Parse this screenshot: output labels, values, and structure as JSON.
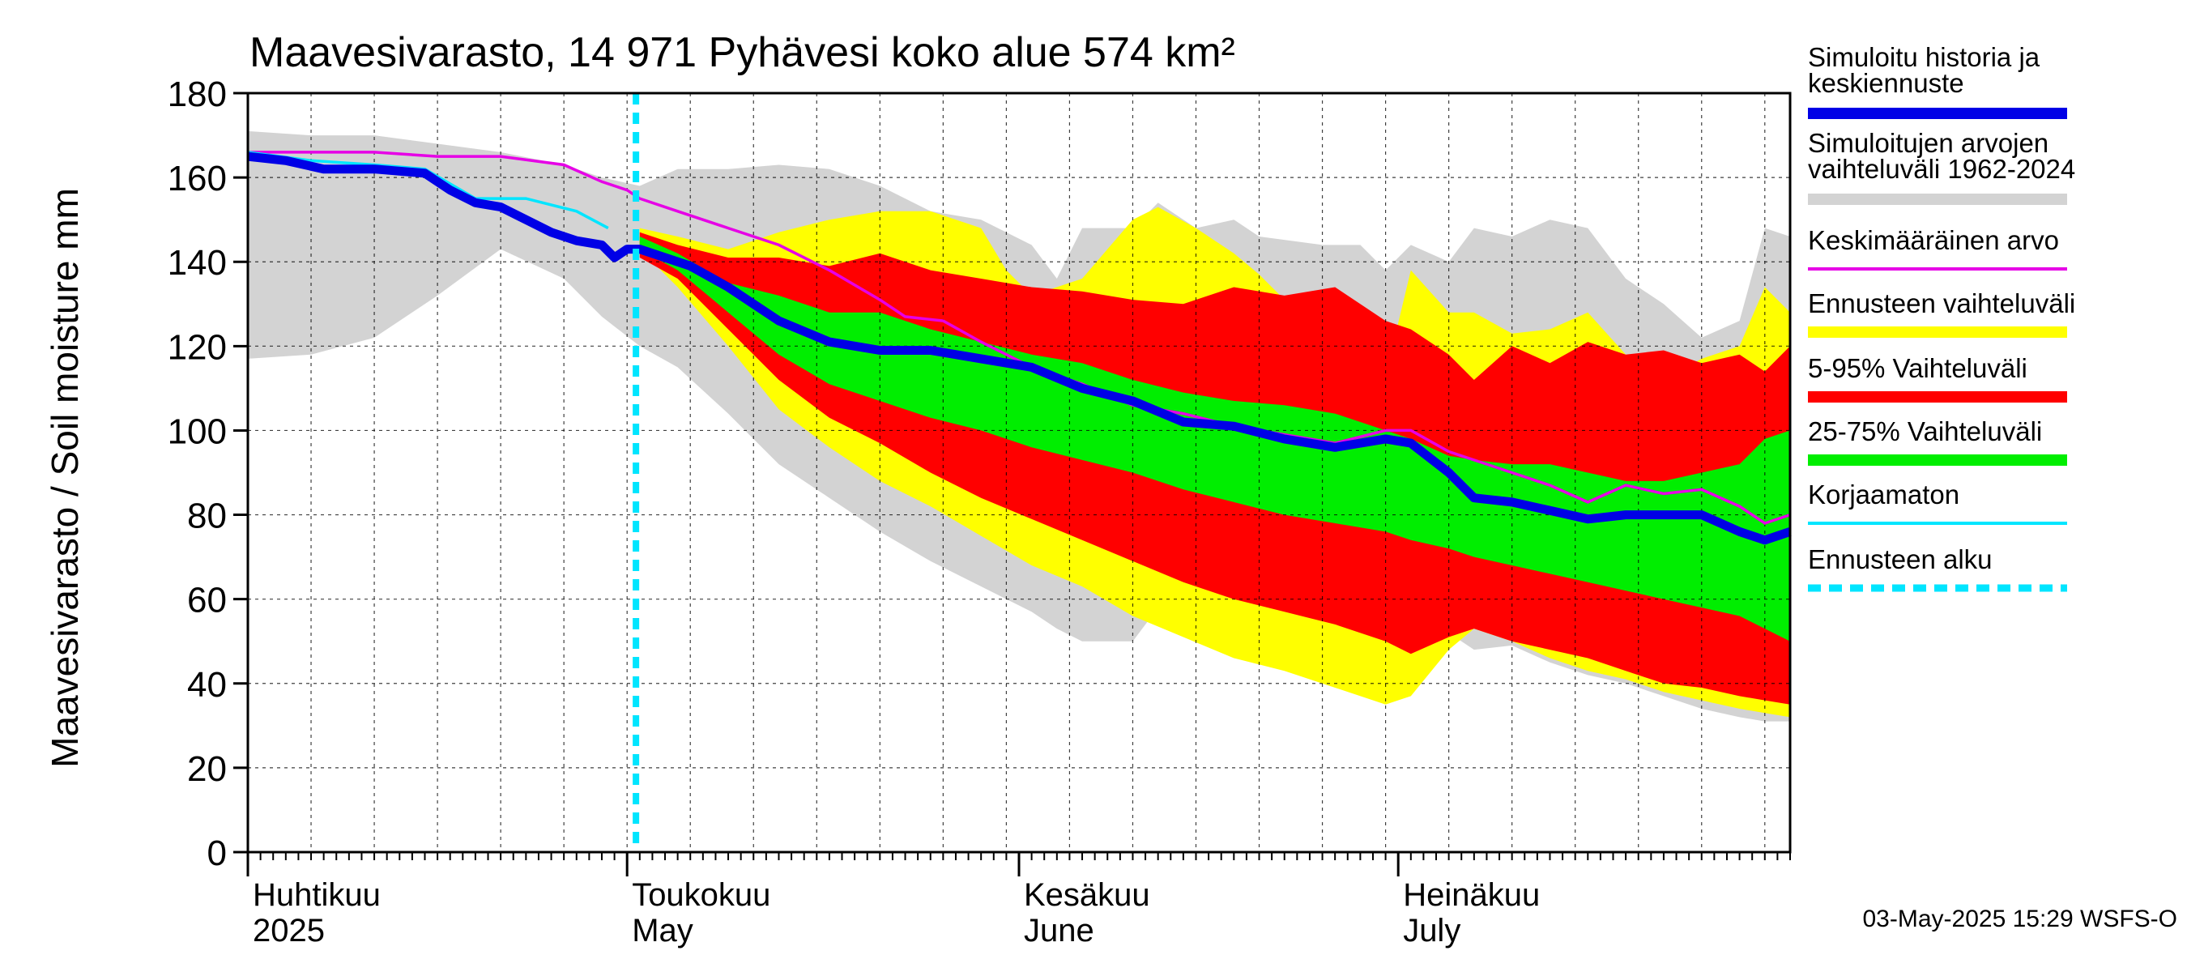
{
  "chart_data": {
    "type": "area",
    "title": "Maavesivarasto, 14 971 Pyhävesi koko alue 574 km²",
    "ylabel": "Maavesivarasto / Soil moisture   mm",
    "ylim": [
      0,
      180
    ],
    "yticks": [
      "0",
      "20",
      "40",
      "60",
      "80",
      "100",
      "120",
      "140",
      "160",
      "180"
    ],
    "xlim_days": [
      0,
      122
    ],
    "x_unit": "days since 2025-04-01",
    "grid": true,
    "legend_position": "right",
    "forecast_start_day": 30.7,
    "month_ticks": [
      {
        "day": 0,
        "fi": "Huhtikuu",
        "en": "2025"
      },
      {
        "day": 30,
        "fi": "Toukokuu",
        "en": "May"
      },
      {
        "day": 61,
        "fi": "Kesäkuu",
        "en": "June"
      },
      {
        "day": 91,
        "fi": "Heinäkuu",
        "en": "July"
      }
    ],
    "timestamp": "03-May-2025 15:29 WSFS-O",
    "colors": {
      "history": "#0000e6",
      "range_hist": "#d3d3d3",
      "mean": "#e600e6",
      "forecast_range": "#ffff00",
      "p5_95": "#ff0000",
      "p25_75": "#00ee00",
      "uncorrected": "#00e5ff",
      "forecast_start": "#00e5ff"
    },
    "legend": [
      {
        "label": "Simuloitu historia ja",
        "label2": "keskiennuste",
        "style": "history"
      },
      {
        "label": "Simuloitujen arvojen",
        "label2": "vaihteluväli 1962-2024",
        "style": "range_hist"
      },
      {
        "label": "Keskimääräinen arvo",
        "label2": "",
        "style": "mean"
      },
      {
        "label": "Ennusteen vaihteluväli",
        "label2": "",
        "style": "forecast_range"
      },
      {
        "label": "5-95% Vaihteluväli",
        "label2": "",
        "style": "p5_95"
      },
      {
        "label": "25-75% Vaihteluväli",
        "label2": "",
        "style": "p25_75"
      },
      {
        "label": "Korjaamaton",
        "label2": "",
        "style": "uncorrected"
      },
      {
        "label": "Ennusteen alku",
        "label2": "",
        "style": "forecast_start"
      }
    ],
    "series": {
      "hist_range_upper": {
        "x": [
          0,
          5,
          10,
          15,
          20,
          25,
          28,
          31,
          34,
          38,
          42,
          46,
          50,
          54,
          58,
          62,
          64,
          66,
          70,
          72,
          75,
          78,
          80,
          85,
          88,
          90,
          92,
          95,
          97,
          100,
          103,
          106,
          109,
          112,
          115,
          118,
          120,
          122
        ],
        "y": [
          171,
          170,
          170,
          168,
          166,
          163,
          160,
          158,
          162,
          162,
          163,
          162,
          158,
          152,
          150,
          144,
          136,
          148,
          148,
          154,
          148,
          150,
          146,
          144,
          144,
          138,
          144,
          140,
          148,
          146,
          150,
          148,
          136,
          130,
          122,
          126,
          148,
          146
        ]
      },
      "hist_range_lower": {
        "x": [
          0,
          5,
          10,
          15,
          20,
          25,
          28,
          31,
          34,
          38,
          42,
          46,
          50,
          54,
          58,
          62,
          64,
          66,
          70,
          72,
          75,
          78,
          80,
          85,
          88,
          90,
          92,
          95,
          97,
          100,
          103,
          106,
          109,
          112,
          115,
          118,
          120,
          122
        ],
        "y": [
          117,
          118,
          122,
          132,
          143,
          136,
          127,
          120,
          115,
          104,
          92,
          84,
          76,
          69,
          63,
          57,
          53,
          50,
          50,
          58,
          52,
          50,
          49,
          48,
          50,
          50,
          57,
          52,
          48,
          49,
          45,
          42,
          40,
          37,
          34,
          32,
          31,
          31
        ]
      },
      "forecast_upper": {
        "x": [
          31,
          34,
          38,
          42,
          46,
          50,
          54,
          58,
          60,
          62,
          66,
          70,
          72,
          75,
          78,
          80,
          85,
          88,
          90,
          92,
          95,
          97,
          100,
          103,
          106,
          109,
          112,
          115,
          118,
          120,
          122
        ],
        "y": [
          148,
          146,
          143,
          147,
          150,
          152,
          152,
          148,
          138,
          132,
          136,
          150,
          153,
          148,
          142,
          137,
          122,
          118,
          113,
          138,
          128,
          128,
          123,
          124,
          128,
          118,
          112,
          117,
          120,
          134,
          128
        ]
      },
      "forecast_lower": {
        "x": [
          31,
          34,
          38,
          42,
          46,
          50,
          54,
          58,
          62,
          66,
          70,
          74,
          78,
          82,
          86,
          90,
          92,
          95,
          97,
          100,
          103,
          106,
          109,
          112,
          115,
          118,
          120,
          122
        ],
        "y": [
          143,
          134,
          120,
          105,
          96,
          88,
          82,
          75,
          68,
          63,
          56,
          51,
          46,
          43,
          39,
          35,
          37,
          48,
          53,
          50,
          46,
          43,
          41,
          38,
          36,
          34,
          33,
          32
        ]
      },
      "p95": {
        "x": [
          31,
          34,
          38,
          42,
          46,
          50,
          54,
          58,
          62,
          66,
          70,
          74,
          78,
          82,
          86,
          90,
          92,
          95,
          97,
          100,
          103,
          106,
          109,
          112,
          115,
          118,
          120,
          122
        ],
        "y": [
          147,
          144,
          141,
          141,
          139,
          142,
          138,
          136,
          134,
          133,
          131,
          130,
          134,
          132,
          134,
          126,
          124,
          118,
          112,
          120,
          116,
          121,
          118,
          119,
          116,
          118,
          114,
          120
        ]
      },
      "p5": {
        "x": [
          31,
          34,
          38,
          42,
          46,
          50,
          54,
          58,
          62,
          66,
          70,
          74,
          78,
          82,
          86,
          90,
          92,
          95,
          97,
          100,
          103,
          106,
          109,
          112,
          115,
          118,
          120,
          122
        ],
        "y": [
          141,
          136,
          124,
          112,
          103,
          97,
          90,
          84,
          79,
          74,
          69,
          64,
          60,
          57,
          54,
          50,
          47,
          51,
          53,
          50,
          48,
          46,
          43,
          40,
          39,
          37,
          36,
          35
        ]
      },
      "p75": {
        "x": [
          31,
          34,
          38,
          42,
          46,
          50,
          54,
          58,
          62,
          66,
          70,
          74,
          78,
          82,
          86,
          90,
          92,
          95,
          97,
          100,
          103,
          106,
          109,
          112,
          115,
          118,
          120,
          122
        ],
        "y": [
          146,
          142,
          135,
          132,
          128,
          128,
          124,
          121,
          118,
          116,
          112,
          109,
          107,
          106,
          104,
          100,
          98,
          94,
          93,
          92,
          92,
          90,
          88,
          88,
          90,
          92,
          98,
          100
        ]
      },
      "p25": {
        "x": [
          31,
          34,
          38,
          42,
          46,
          50,
          54,
          58,
          62,
          66,
          70,
          74,
          78,
          82,
          86,
          90,
          92,
          95,
          97,
          100,
          103,
          106,
          109,
          112,
          115,
          118,
          120,
          122
        ],
        "y": [
          143,
          138,
          128,
          118,
          111,
          107,
          103,
          100,
          96,
          93,
          90,
          86,
          83,
          80,
          78,
          76,
          74,
          72,
          70,
          68,
          66,
          64,
          62,
          60,
          58,
          56,
          53,
          50
        ]
      },
      "mean": {
        "x": [
          0,
          2,
          5,
          10,
          15,
          20,
          25,
          28,
          30,
          31,
          34,
          38,
          42,
          46,
          50,
          52,
          55,
          58,
          62,
          66,
          70,
          74,
          78,
          82,
          86,
          90,
          92,
          95,
          97,
          100,
          103,
          106,
          109,
          112,
          115,
          118,
          120,
          122
        ],
        "y": [
          166,
          166,
          166,
          166,
          165,
          165,
          163,
          159,
          157,
          155,
          152,
          148,
          144,
          138,
          131,
          127,
          126,
          121,
          115,
          111,
          106,
          104,
          101,
          99,
          97,
          100,
          100,
          95,
          93,
          90,
          87,
          83,
          87,
          85,
          86,
          82,
          78,
          80
        ]
      },
      "uncorrected": {
        "x": [
          0,
          5,
          10,
          14,
          18,
          22,
          26,
          28.5
        ],
        "y": [
          166,
          164,
          163,
          162,
          155,
          155,
          152,
          148
        ]
      },
      "history": {
        "x": [
          0,
          3,
          6,
          10,
          14,
          16,
          18,
          20,
          22,
          24,
          26,
          28,
          29,
          30,
          31,
          33,
          35,
          38,
          42,
          46,
          50,
          54,
          58,
          62,
          66,
          70,
          74,
          78,
          82,
          86,
          90,
          92,
          95,
          97,
          100,
          103,
          106,
          109,
          112,
          115,
          118,
          120,
          122
        ],
        "y": [
          165,
          164,
          162,
          162,
          161,
          157,
          154,
          153,
          150,
          147,
          145,
          144,
          141,
          143,
          143,
          141,
          139,
          134,
          126,
          121,
          119,
          119,
          117,
          115,
          110,
          107,
          102,
          101,
          98,
          96,
          98,
          97,
          90,
          84,
          83,
          81,
          79,
          80,
          80,
          80,
          76,
          74,
          76
        ]
      }
    }
  }
}
